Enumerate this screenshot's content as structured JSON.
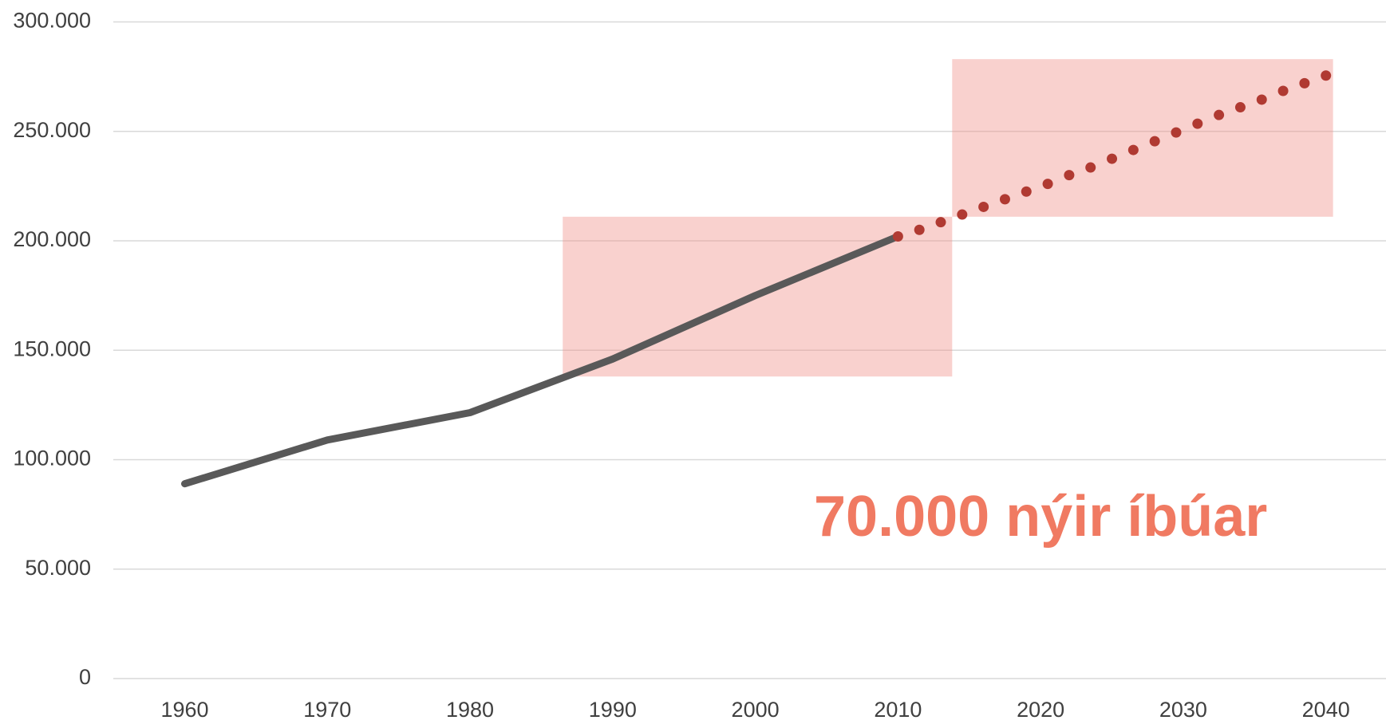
{
  "chart_data": {
    "type": "line",
    "annotation": "70.000 nýir íbúar",
    "series": [
      {
        "color": "#595959",
        "style": "solid",
        "x": [
          1960,
          1970,
          1980,
          1990,
          2000,
          2010
        ],
        "values": [
          89000,
          109000,
          121500,
          146000,
          175000,
          202000
        ]
      },
      {
        "color": "#b03a32",
        "style": "dotted",
        "x": [
          2010,
          2011.5,
          2013,
          2014.5,
          2016,
          2017.5,
          2019,
          2020.5,
          2022,
          2023.5,
          2025,
          2026.5,
          2028,
          2029.5,
          2031,
          2032.5,
          2034,
          2035.5,
          2037,
          2038.5,
          2040
        ],
        "values": [
          202000,
          205000,
          208500,
          212000,
          215500,
          219000,
          222500,
          226000,
          230000,
          233500,
          237500,
          241500,
          245500,
          249500,
          253500,
          257500,
          261000,
          264500,
          268500,
          272000,
          275500
        ]
      }
    ],
    "highlights": [
      {
        "xlim": [
          1986.5,
          2013.8
        ],
        "ylim": [
          138000,
          211000
        ],
        "color": "#f08c84"
      },
      {
        "xlim": [
          2013.8,
          2040.5
        ],
        "ylim": [
          211000,
          283000
        ],
        "color": "#f08c84"
      }
    ],
    "xlim": [
      1955,
      2044
    ],
    "xticks": [
      1960,
      1970,
      1980,
      1990,
      2000,
      2010,
      2020,
      2030,
      2040
    ],
    "ylim": [
      0,
      300000
    ],
    "yticks": [
      0,
      {
        "value": 50000,
        "label": "50.000"
      },
      {
        "value": 100000,
        "label": "100.000"
      },
      {
        "value": 150000,
        "label": "150.000"
      },
      {
        "value": 200000,
        "label": "200.000"
      },
      {
        "value": 250000,
        "label": "250.000"
      },
      {
        "value": 300000,
        "label": "300.000"
      }
    ],
    "grid": true
  }
}
